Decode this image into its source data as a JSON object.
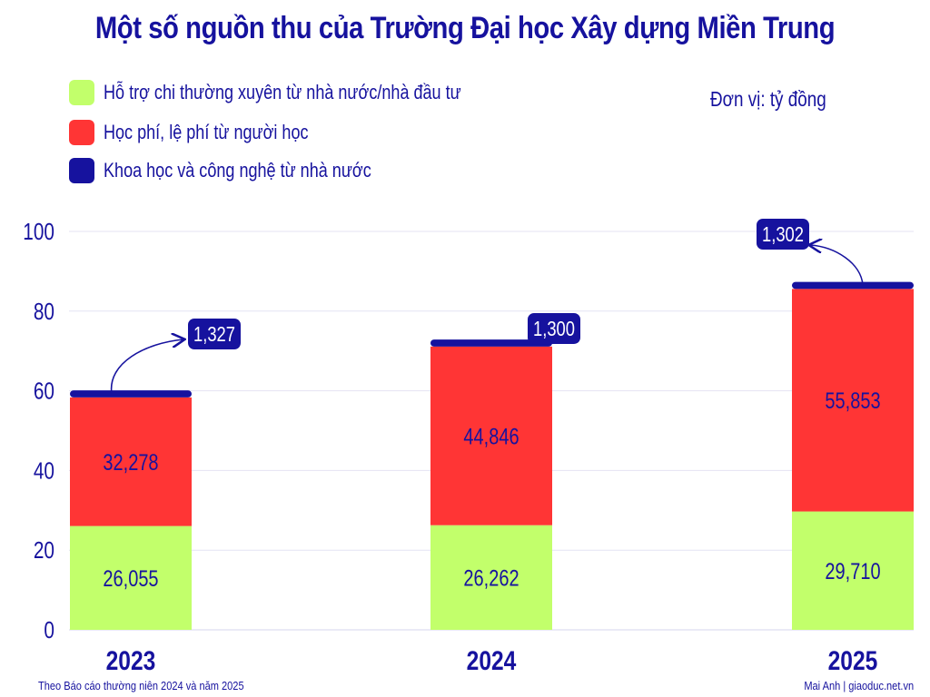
{
  "title": "Một số nguồn thu của Trường Đại học Xây dựng Miền Trung",
  "unit_label": "Đơn vị: tỷ đồng",
  "footer": {
    "source": "Theo Báo cáo thường niên 2024 và năm 2025",
    "credit": "Mai Anh | giaoduc.net.vn"
  },
  "colors": {
    "text": "#16129e",
    "grid": "#e4e3f3"
  },
  "legend": [
    {
      "label": "Hỗ trợ chi thường xuyên từ nhà nước/nhà đầu tư",
      "color": "#c2ff6b"
    },
    {
      "label": "Học phí, lệ phí từ người học",
      "color": "#ff3535"
    },
    {
      "label": "Khoa học và công nghệ từ nhà nước",
      "color": "#16129e"
    }
  ],
  "chart_data": {
    "type": "bar",
    "stacked": true,
    "title": "Một số nguồn thu của Trường Đại học Xây dựng Miền Trung",
    "unit": "Đơn vị: tỷ đồng",
    "categories": [
      "2023",
      "2024",
      "2025"
    ],
    "ylim": [
      0,
      100
    ],
    "yticks": [
      0,
      20,
      40,
      60,
      80,
      100
    ],
    "grid": true,
    "legend_position": "top-left",
    "series": [
      {
        "name": "Hỗ trợ chi thường xuyên từ nhà nước/nhà đầu tư",
        "values": [
          26.055,
          26.262,
          29.71
        ],
        "labels": [
          "26,055",
          "26,262",
          "29,710"
        ],
        "color": "#c2ff6b"
      },
      {
        "name": "Học phí, lệ phí từ người học",
        "values": [
          32.278,
          44.846,
          55.853
        ],
        "labels": [
          "32,278",
          "44,846",
          "55,853"
        ],
        "color": "#ff3535"
      },
      {
        "name": "Khoa học và công nghệ từ nhà nước",
        "values": [
          1.327,
          1.3,
          1.302
        ],
        "labels": [
          "1,327",
          "1,300",
          "1,302"
        ],
        "color": "#16129e"
      }
    ]
  }
}
